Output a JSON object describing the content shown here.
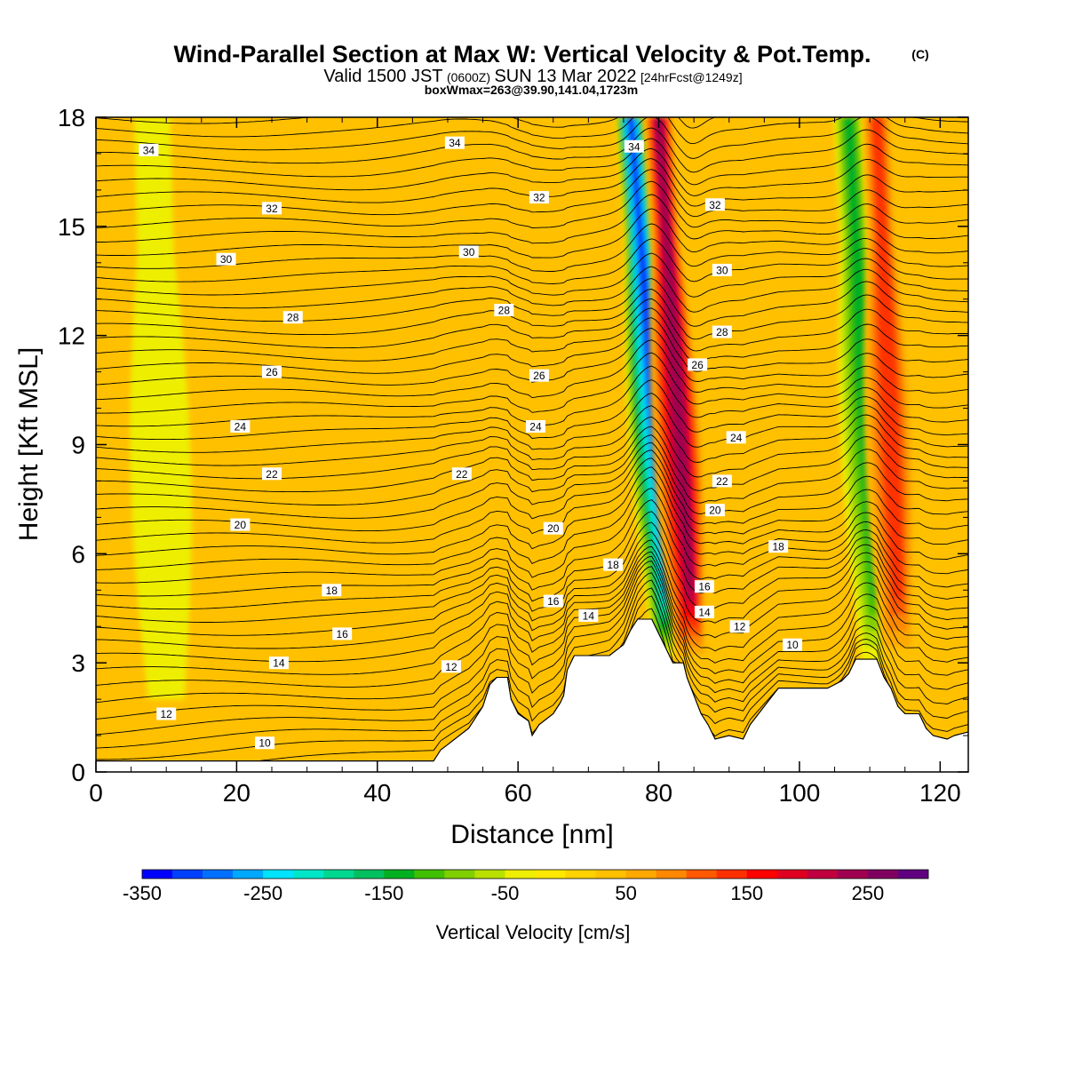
{
  "header": {
    "title": "Wind-Parallel Section at Max W: Vertical Velocity & Pot.Temp.",
    "title_suffix": "(C)",
    "valid_prefix": "Valid 1500 JST",
    "valid_utc": "(0600Z)",
    "valid_date": "SUN 13 Mar 2022",
    "forecast": "[24hrFcst@1249z]",
    "boxinfo": "boxWmax=263@39.90,141.04,1723m"
  },
  "chart_data": {
    "type": "heatmap",
    "xlabel": "Distance [nm]",
    "ylabel": "Height [Kft MSL]",
    "xlim": [
      0,
      124
    ],
    "ylim": [
      0,
      18
    ],
    "xticks": [
      0,
      20,
      40,
      60,
      80,
      100,
      120
    ],
    "yticks": [
      0,
      3,
      6,
      9,
      12,
      15,
      18
    ],
    "background_value_cm_s": 25,
    "terrain_kft": [
      [
        0,
        0.3
      ],
      [
        10,
        0.3
      ],
      [
        20,
        0.3
      ],
      [
        30,
        0.3
      ],
      [
        40,
        0.3
      ],
      [
        48,
        0.3
      ],
      [
        49,
        0.6
      ],
      [
        51,
        0.9
      ],
      [
        53,
        1.2
      ],
      [
        55,
        1.8
      ],
      [
        56,
        2.4
      ],
      [
        57,
        2.6
      ],
      [
        58.5,
        2.6
      ],
      [
        59,
        2.0
      ],
      [
        60,
        1.6
      ],
      [
        61.5,
        1.4
      ],
      [
        62,
        1.0
      ],
      [
        63,
        1.3
      ],
      [
        65,
        1.6
      ],
      [
        66,
        1.9
      ],
      [
        66.5,
        2.1
      ],
      [
        67,
        2.8
      ],
      [
        68,
        3.2
      ],
      [
        70,
        3.2
      ],
      [
        73,
        3.2
      ],
      [
        75,
        3.5
      ],
      [
        76,
        3.9
      ],
      [
        77,
        4.2
      ],
      [
        79,
        4.2
      ],
      [
        80,
        3.8
      ],
      [
        81,
        3.4
      ],
      [
        82,
        3.0
      ],
      [
        83.5,
        3.0
      ],
      [
        84,
        2.6
      ],
      [
        85,
        2.1
      ],
      [
        86,
        1.6
      ],
      [
        87,
        1.3
      ],
      [
        88,
        0.9
      ],
      [
        90,
        1.0
      ],
      [
        92,
        0.9
      ],
      [
        93,
        1.3
      ],
      [
        95,
        1.8
      ],
      [
        97,
        2.3
      ],
      [
        100,
        2.3
      ],
      [
        104,
        2.3
      ],
      [
        106,
        2.5
      ],
      [
        107,
        2.7
      ],
      [
        108,
        3.1
      ],
      [
        111,
        3.1
      ],
      [
        112,
        2.6
      ],
      [
        113,
        2.3
      ],
      [
        114,
        1.8
      ],
      [
        115,
        1.6
      ],
      [
        117,
        1.6
      ],
      [
        118,
        1.2
      ],
      [
        119,
        1.0
      ],
      [
        121,
        0.9
      ],
      [
        122,
        1.0
      ],
      [
        124,
        1.1
      ]
    ],
    "features": [
      {
        "type": "downdraft",
        "x_top": 76,
        "x_bottom": 81.5,
        "y_bottom": 3.2,
        "peak_cm_s": -330
      },
      {
        "type": "updraft",
        "x_top": 80,
        "x_bottom": 84.5,
        "y_bottom": 3.0,
        "peak_cm_s": 263
      },
      {
        "type": "downdraft",
        "x_top": 107,
        "x_bottom": 111,
        "y_bottom": 3.0,
        "peak_cm_s": -160
      },
      {
        "type": "updraft",
        "x_top": 111,
        "x_bottom": 114,
        "y_bottom": 3.0,
        "peak_cm_s": 170
      },
      {
        "type": "weak_updraft",
        "x_top": 54,
        "x_bottom": 50,
        "y_bottom": 1.5,
        "peak_cm_s": 60
      },
      {
        "type": "weak_downdraft",
        "x_top": 8,
        "x_bottom": 10,
        "y_bottom": 2.0,
        "peak_cm_s": -30
      }
    ],
    "isentropes_C": {
      "min": 2,
      "max": 35,
      "step": 0.5,
      "level_kft_at_0": "(theta - 9.8) / 1.375"
    },
    "isentrope_labels": [
      {
        "text": "34",
        "x": 7.5,
        "y": 17.1
      },
      {
        "text": "34",
        "x": 51.0,
        "y": 17.3
      },
      {
        "text": "34",
        "x": 76.5,
        "y": 17.2
      },
      {
        "text": "32",
        "x": 25.0,
        "y": 15.5
      },
      {
        "text": "32",
        "x": 63.0,
        "y": 15.8
      },
      {
        "text": "32",
        "x": 88.0,
        "y": 15.6
      },
      {
        "text": "30",
        "x": 18.5,
        "y": 14.1
      },
      {
        "text": "30",
        "x": 53.0,
        "y": 14.3
      },
      {
        "text": "30",
        "x": 89.0,
        "y": 13.8
      },
      {
        "text": "28",
        "x": 28.0,
        "y": 12.5
      },
      {
        "text": "28",
        "x": 58.0,
        "y": 12.7
      },
      {
        "text": "28",
        "x": 89.0,
        "y": 12.1
      },
      {
        "text": "26",
        "x": 25.0,
        "y": 11.0
      },
      {
        "text": "26",
        "x": 63.0,
        "y": 10.9
      },
      {
        "text": "26",
        "x": 85.5,
        "y": 11.2
      },
      {
        "text": "24",
        "x": 20.5,
        "y": 9.5
      },
      {
        "text": "24",
        "x": 62.5,
        "y": 9.5
      },
      {
        "text": "24",
        "x": 91.0,
        "y": 9.2
      },
      {
        "text": "22",
        "x": 25.0,
        "y": 8.2
      },
      {
        "text": "22",
        "x": 52.0,
        "y": 8.2
      },
      {
        "text": "22",
        "x": 89.0,
        "y": 8.0
      },
      {
        "text": "20",
        "x": 20.5,
        "y": 6.8
      },
      {
        "text": "20",
        "x": 65.0,
        "y": 6.7
      },
      {
        "text": "20",
        "x": 88.0,
        "y": 7.2
      },
      {
        "text": "18",
        "x": 33.5,
        "y": 5.0
      },
      {
        "text": "18",
        "x": 73.5,
        "y": 5.7
      },
      {
        "text": "18",
        "x": 97.0,
        "y": 6.2
      },
      {
        "text": "16",
        "x": 35.0,
        "y": 3.8
      },
      {
        "text": "16",
        "x": 65.0,
        "y": 4.7
      },
      {
        "text": "16",
        "x": 86.5,
        "y": 5.1
      },
      {
        "text": "14",
        "x": 26.0,
        "y": 3.0
      },
      {
        "text": "14",
        "x": 70.0,
        "y": 4.3
      },
      {
        "text": "14",
        "x": 86.5,
        "y": 4.4
      },
      {
        "text": "12",
        "x": 10.0,
        "y": 1.6
      },
      {
        "text": "12",
        "x": 50.5,
        "y": 2.9
      },
      {
        "text": "12",
        "x": 91.5,
        "y": 4.0
      },
      {
        "text": "10",
        "x": 24.0,
        "y": 0.8
      },
      {
        "text": "10",
        "x": 99.0,
        "y": 3.5
      }
    ],
    "colorbar": {
      "label": "Vertical Velocity [cm/s]",
      "min": -350,
      "max": 280,
      "step": 25,
      "tick_values": [
        -350,
        -250,
        -150,
        -50,
        50,
        150,
        250
      ],
      "tick_labels": [
        "-350",
        "-250",
        "-150",
        "-50",
        "50",
        "150",
        "250"
      ],
      "colors": [
        "#0000ff",
        "#0040ff",
        "#0070ff",
        "#00a8ff",
        "#00e4ff",
        "#00e6c8",
        "#00d890",
        "#00c060",
        "#00b020",
        "#40c000",
        "#80d000",
        "#b8e000",
        "#eeee00",
        "#ffe800",
        "#ffd200",
        "#ffc000",
        "#ffa800",
        "#ff8800",
        "#ff5800",
        "#ff3000",
        "#ff0000",
        "#e00020",
        "#c00040",
        "#a00050",
        "#800060",
        "#600080"
      ]
    }
  }
}
